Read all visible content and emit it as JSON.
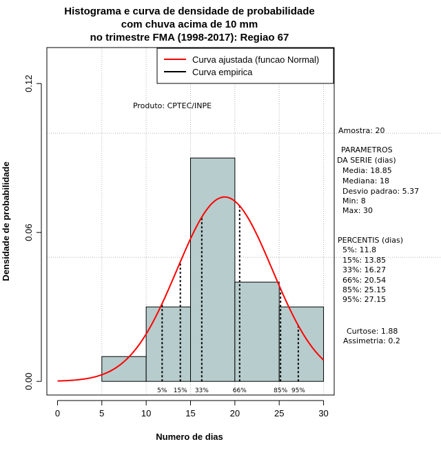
{
  "chart_data": {
    "type": "bar",
    "title_lines": [
      "Histograma e curva de densidade de probabilidade",
      "com chuva acima de 10 mm",
      "no trimestre FMA (1998-2017): Regiao 67"
    ],
    "xlabel": "Numero de dias",
    "ylabel": "Densidade de probabilidade",
    "xlim": [
      -1.2,
      31.2
    ],
    "ylim": [
      -0.0055,
      0.1345
    ],
    "x_ticks": [
      0,
      5,
      10,
      15,
      20,
      25,
      30
    ],
    "x_tick_labels": [
      "0",
      "5",
      "10",
      "15",
      "20",
      "25",
      "30"
    ],
    "y_ticks": [
      0.0,
      0.06,
      0.12
    ],
    "y_tick_labels": [
      "0.00",
      "0.06",
      "0.12"
    ],
    "grid_x": [
      5,
      10,
      15,
      20,
      25,
      30
    ],
    "grid_y": [
      0.1,
      0.05
    ],
    "bins": [
      {
        "x0": 5,
        "x1": 10,
        "density": 0.01
      },
      {
        "x0": 10,
        "x1": 15,
        "density": 0.03
      },
      {
        "x0": 15,
        "x1": 20,
        "density": 0.09
      },
      {
        "x0": 20,
        "x1": 25,
        "density": 0.04
      },
      {
        "x0": 25,
        "x1": 30,
        "density": 0.03
      }
    ],
    "fitted_curve": {
      "name": "Curva ajustada (funcao Normal)",
      "mean": 18.85,
      "sd": 5.37,
      "x_from": 0,
      "x_to": 30,
      "color": "#ff0000"
    },
    "empirical_curve": {
      "name": "Curva empirica",
      "color": "#000000"
    },
    "percentile_lines": [
      {
        "label": "5%",
        "x": 11.8
      },
      {
        "label": "15%",
        "x": 13.85
      },
      {
        "label": "33%",
        "x": 16.27
      },
      {
        "label": "66%",
        "x": 20.54
      },
      {
        "label": "85%",
        "x": 25.15
      },
      {
        "label": "95%",
        "x": 27.15
      }
    ],
    "legend": {
      "placement": "top-right",
      "entries": [
        "Curva ajustada (funcao Normal)",
        "Curva empirica"
      ]
    },
    "annotation_product": "Produto: CPTEC/INPE",
    "bar_color": "#b7cccc",
    "side_panel": {
      "amostra": "Amostra: 20",
      "params_header": [
        "PARAMETROS",
        "DA SERIE (dias)"
      ],
      "params": [
        "Media: 18.85",
        "Mediana: 18",
        "Desvio padrao: 5.37",
        "Min: 8",
        "Max: 30"
      ],
      "percentis_header": "PERCENTIS (dias)",
      "percentis": [
        "5%: 11.8",
        "15%: 13.85",
        "33%: 16.27",
        "66%: 20.54",
        "85%: 25.15",
        "95%: 27.15"
      ],
      "curtose": "Curtose: 1.88",
      "assimetria": "Assimetria: 0.2"
    }
  }
}
